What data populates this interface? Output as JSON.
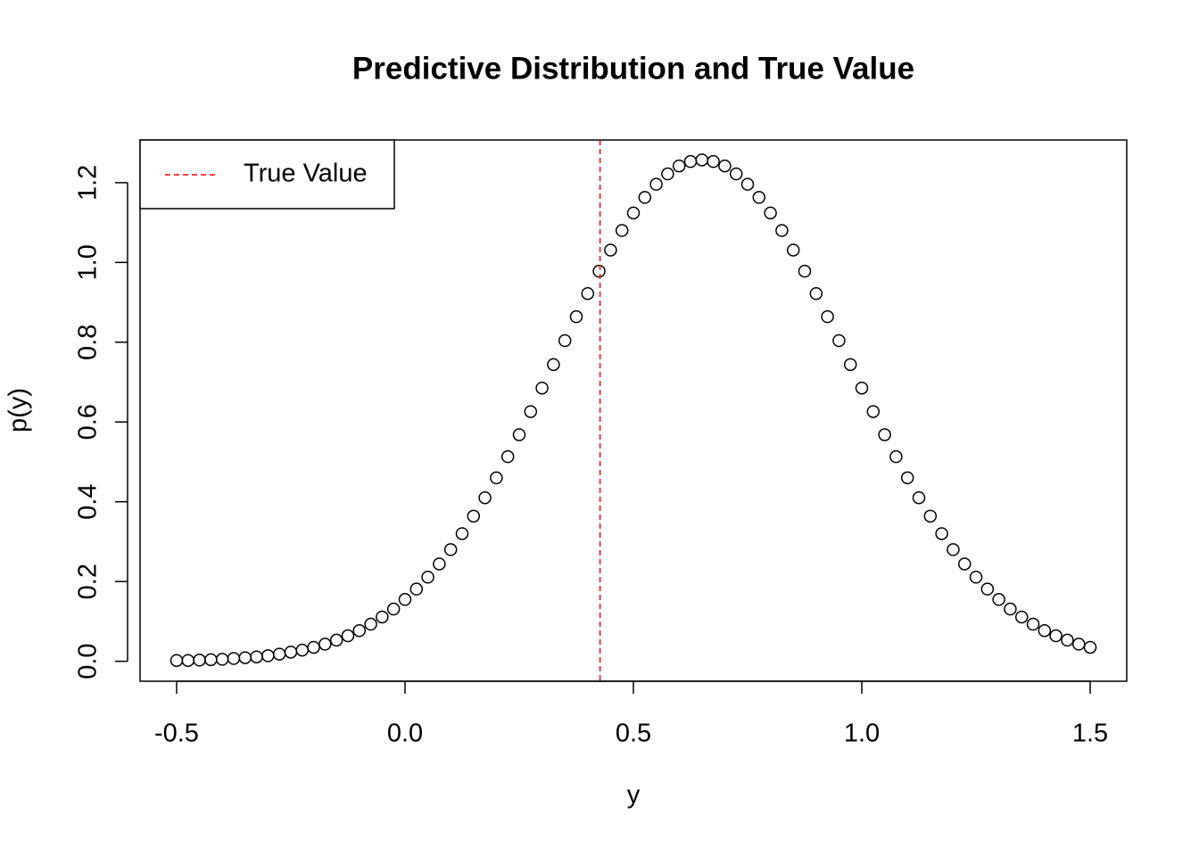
{
  "chart_data": {
    "type": "scatter",
    "title": "Predictive Distribution and True Value",
    "x_label": "y",
    "y_label": "p(y)",
    "x": [
      -0.5,
      -0.475,
      -0.45,
      -0.425,
      -0.4,
      -0.375,
      -0.35,
      -0.325,
      -0.3,
      -0.275,
      -0.25,
      -0.225,
      -0.2,
      -0.175,
      -0.15,
      -0.125,
      -0.1,
      -0.075,
      -0.05,
      -0.025,
      0,
      0.025,
      0.05,
      0.075,
      0.1,
      0.125,
      0.15,
      0.175,
      0.2,
      0.225,
      0.25,
      0.275,
      0.3,
      0.325,
      0.35,
      0.375,
      0.4,
      0.425,
      0.45,
      0.475,
      0.5,
      0.525,
      0.55,
      0.575,
      0.6,
      0.625,
      0.65,
      0.675,
      0.7,
      0.725,
      0.75,
      0.775,
      0.8,
      0.825,
      0.85,
      0.875,
      0.9,
      0.925,
      0.95,
      0.975,
      1,
      1.025,
      1.05,
      1.075,
      1.1,
      1.125,
      1.15,
      1.175,
      1.2,
      1.225,
      1.25,
      1.275,
      1.3,
      1.325,
      1.35,
      1.375,
      1.4,
      1.425,
      1.45,
      1.475,
      1.5
    ],
    "values": [
      0.002,
      0.002,
      0.003,
      0.004,
      0.005,
      0.007,
      0.009,
      0.011,
      0.014,
      0.018,
      0.023,
      0.028,
      0.035,
      0.043,
      0.053,
      0.064,
      0.077,
      0.093,
      0.111,
      0.131,
      0.155,
      0.181,
      0.211,
      0.244,
      0.28,
      0.32,
      0.364,
      0.41,
      0.46,
      0.513,
      0.568,
      0.626,
      0.685,
      0.744,
      0.804,
      0.864,
      0.922,
      0.978,
      1.031,
      1.08,
      1.124,
      1.163,
      1.196,
      1.222,
      1.242,
      1.253,
      1.257,
      1.253,
      1.242,
      1.222,
      1.196,
      1.163,
      1.124,
      1.08,
      1.031,
      0.978,
      0.922,
      0.864,
      0.804,
      0.744,
      0.685,
      0.626,
      0.568,
      0.513,
      0.46,
      0.41,
      0.364,
      0.32,
      0.28,
      0.244,
      0.211,
      0.181,
      0.155,
      0.131,
      0.111,
      0.093,
      0.077,
      0.064,
      0.053,
      0.043,
      0.035
    ],
    "color": "#000000",
    "true_value": {
      "name": "True Value",
      "value": 0.427,
      "color": "#ff0000"
    },
    "legend_position": "topleft",
    "xlim": [
      -0.58,
      1.58
    ],
    "xticks": [
      -0.5,
      {
        "value": 0,
        "label": "0.0"
      },
      0.5,
      {
        "value": 1,
        "label": "1.0"
      },
      1.5
    ],
    "ylim": [
      -0.05,
      1.307
    ],
    "yticks": [
      {
        "value": 0,
        "label": "0.0"
      },
      0.2,
      0.4,
      0.6,
      0.8,
      {
        "value": 1,
        "label": "1.0"
      },
      1.2
    ]
  }
}
